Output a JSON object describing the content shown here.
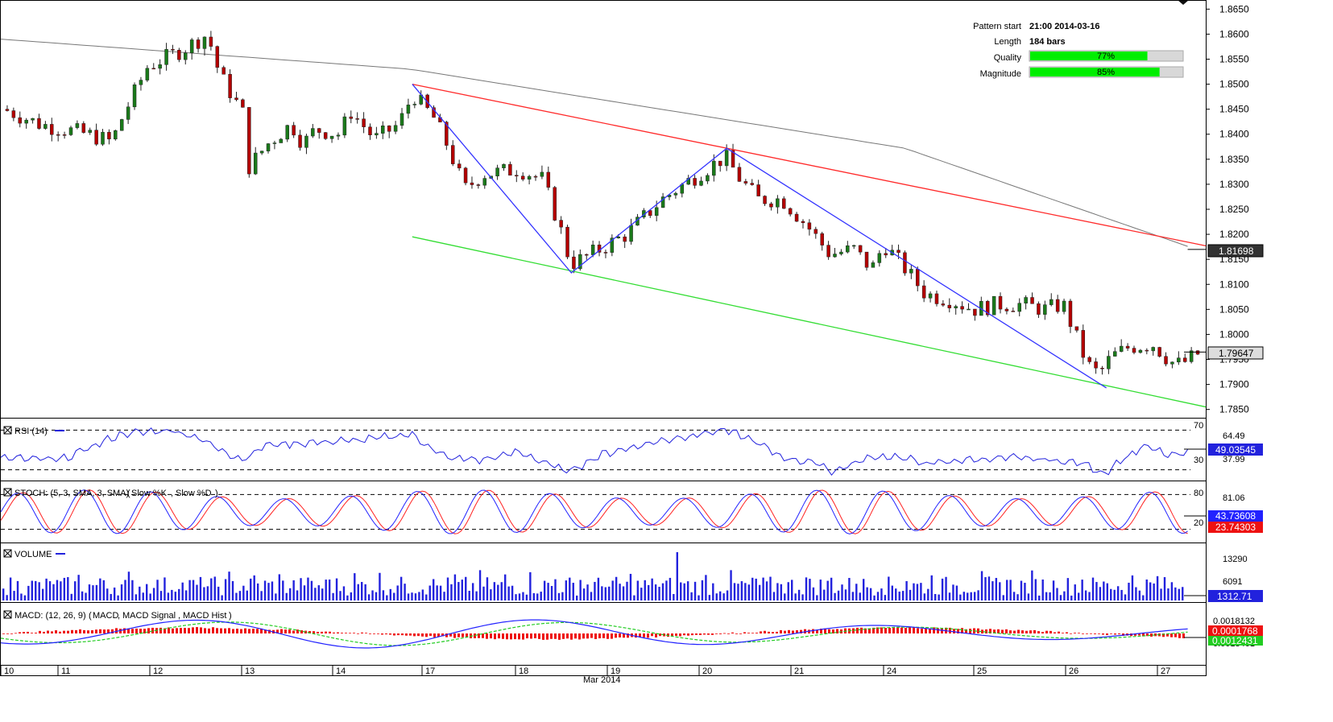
{
  "info": {
    "pattern_start_label": "Pattern start",
    "pattern_start_value": "21:00 2014-03-16",
    "length_label": "Length",
    "length_value": "184 bars",
    "quality_label": "Quality",
    "quality_value": "77%",
    "quality_fraction": 0.77,
    "magnitude_label": "Magnitude",
    "magnitude_value": "85%",
    "magnitude_fraction": 0.85
  },
  "colors": {
    "up_candle": "#1a7a1a",
    "down_candle": "#b40000",
    "trend_upper": "#ff2a2a",
    "trend_lower": "#33dd33",
    "zigzag": "#3333ff",
    "ma": "#777777",
    "rsi": "#2222dd",
    "stoch_k": "#2222ff",
    "stoch_d": "#ff2222",
    "volume": "#2222dd",
    "macd": "#2222ff",
    "macd_signal": "#22cc22",
    "macd_hist": "#ee1111",
    "bar_fill": "#00ee00"
  },
  "chart_data": [
    {
      "type": "candlestick",
      "panel": "price",
      "y_ticks": [
        "1.8650",
        "1.8600",
        "1.8550",
        "1.8500",
        "1.8450",
        "1.8400",
        "1.8350",
        "1.8300",
        "1.8250",
        "1.8200",
        "1.8150",
        "1.8100",
        "1.8050",
        "1.8000",
        "1.7950",
        "1.7900",
        "1.7850"
      ],
      "ylim": [
        1.7835,
        1.8665
      ],
      "ma_label": "1.81698",
      "ma_value": 1.81698,
      "last_label": "1.79647",
      "last_value": 1.79647,
      "pattern_lines": {
        "upper": [
          [
            0.3415,
            1.85
          ],
          [
            1.0,
            1.8177
          ]
        ],
        "lower": [
          [
            0.3415,
            1.8195
          ],
          [
            1.0,
            1.7855
          ]
        ],
        "zigzag": [
          [
            0.3415,
            1.85
          ],
          [
            0.4735,
            1.8123
          ],
          [
            0.6025,
            1.8372
          ],
          [
            0.9175,
            1.7893
          ]
        ]
      },
      "anchors": [
        [
          0,
          1.845
        ],
        [
          0.03,
          1.842
        ],
        [
          0.07,
          1.84
        ],
        [
          0.09,
          1.8385
        ],
        [
          0.1,
          1.844
        ],
        [
          0.12,
          1.8535
        ],
        [
          0.15,
          1.857
        ],
        [
          0.17,
          1.86
        ],
        [
          0.18,
          1.852
        ],
        [
          0.2,
          1.844
        ],
        [
          0.203,
          1.833
        ],
        [
          0.22,
          1.838
        ],
        [
          0.24,
          1.842
        ],
        [
          0.25,
          1.838
        ],
        [
          0.26,
          1.841
        ],
        [
          0.28,
          1.84
        ],
        [
          0.29,
          1.8445
        ],
        [
          0.31,
          1.839
        ],
        [
          0.33,
          1.842
        ],
        [
          0.3415,
          1.848
        ],
        [
          0.36,
          1.843
        ],
        [
          0.37,
          1.838
        ],
        [
          0.385,
          1.829
        ],
        [
          0.4,
          1.832
        ],
        [
          0.43,
          1.833
        ],
        [
          0.45,
          1.831
        ],
        [
          0.465,
          1.821
        ],
        [
          0.4735,
          1.814
        ],
        [
          0.49,
          1.816
        ],
        [
          0.52,
          1.82
        ],
        [
          0.55,
          1.827
        ],
        [
          0.58,
          1.832
        ],
        [
          0.6025,
          1.8355
        ],
        [
          0.615,
          1.831
        ],
        [
          0.63,
          1.827
        ],
        [
          0.65,
          1.827
        ],
        [
          0.67,
          1.822
        ],
        [
          0.69,
          1.816
        ],
        [
          0.71,
          1.817
        ],
        [
          0.725,
          1.813
        ],
        [
          0.735,
          1.818
        ],
        [
          0.75,
          1.814
        ],
        [
          0.77,
          1.808
        ],
        [
          0.79,
          1.807
        ],
        [
          0.81,
          1.805
        ],
        [
          0.83,
          1.806
        ],
        [
          0.85,
          1.806
        ],
        [
          0.87,
          1.805
        ],
        [
          0.885,
          1.806
        ],
        [
          0.895,
          1.8
        ],
        [
          0.905,
          1.794
        ],
        [
          0.915,
          1.792
        ],
        [
          0.925,
          1.7955
        ],
        [
          0.94,
          1.7975
        ],
        [
          0.96,
          1.798
        ],
        [
          0.975,
          1.7945
        ],
        [
          0.983,
          1.794
        ],
        [
          0.99,
          1.795
        ],
        [
          1.0,
          1.7965
        ]
      ]
    },
    {
      "type": "line",
      "panel": "rsi",
      "title": "RSI (14)",
      "levels": [
        "70",
        "30"
      ],
      "y_ticks": [
        "64.49",
        "37.99"
      ],
      "last_label": "49.03545",
      "ylim": [
        20,
        80
      ],
      "anchors": [
        [
          0,
          42
        ],
        [
          0.05,
          40
        ],
        [
          0.1,
          66
        ],
        [
          0.14,
          70
        ],
        [
          0.16,
          64
        ],
        [
          0.2,
          40
        ],
        [
          0.22,
          55
        ],
        [
          0.3,
          60
        ],
        [
          0.34,
          66
        ],
        [
          0.37,
          42
        ],
        [
          0.4,
          40
        ],
        [
          0.43,
          48
        ],
        [
          0.47,
          28
        ],
        [
          0.5,
          46
        ],
        [
          0.55,
          60
        ],
        [
          0.58,
          66
        ],
        [
          0.6,
          70
        ],
        [
          0.62,
          62
        ],
        [
          0.65,
          42
        ],
        [
          0.68,
          36
        ],
        [
          0.69,
          28
        ],
        [
          0.72,
          42
        ],
        [
          0.74,
          44
        ],
        [
          0.77,
          36
        ],
        [
          0.8,
          40
        ],
        [
          0.84,
          42
        ],
        [
          0.87,
          40
        ],
        [
          0.9,
          36
        ],
        [
          0.915,
          26
        ],
        [
          0.93,
          40
        ],
        [
          0.95,
          54
        ],
        [
          0.97,
          44
        ],
        [
          1.0,
          49
        ]
      ]
    },
    {
      "type": "line",
      "panel": "stochastic",
      "title": "STOCH: (5, 3, SMA, 3, SMA)",
      "series": [
        {
          "name": "Slow %K"
        },
        {
          "name": "Slow %D"
        }
      ],
      "levels": [
        "80",
        "20"
      ],
      "y_ticks": [
        "81.06"
      ],
      "last_labels": [
        "43.73608",
        "23.74303"
      ],
      "ylim": [
        0,
        100
      ]
    },
    {
      "type": "bar",
      "panel": "volume",
      "title": "VOLUME",
      "y_ticks": [
        "13290",
        "6091"
      ],
      "last_label": "1312.71"
    },
    {
      "type": "line",
      "panel": "macd",
      "title": "MACD: (12, 26, 9)",
      "series": [
        {
          "name": "MACD"
        },
        {
          "name": "MACD Signal"
        },
        {
          "name": "MACD Hist"
        }
      ],
      "y_ticks": [
        "0.0018132"
      ],
      "last_labels": [
        "0.0001768",
        "0.0012431"
      ],
      "bottom_tick_label": "0.0013401"
    },
    {
      "type": "x-axis",
      "x_ticks": [
        "10",
        "11",
        "12",
        "13",
        "14",
        "17",
        "18",
        "19",
        "20",
        "21",
        "24",
        "25",
        "26",
        "27"
      ],
      "x_label": "Mar 2014"
    }
  ]
}
